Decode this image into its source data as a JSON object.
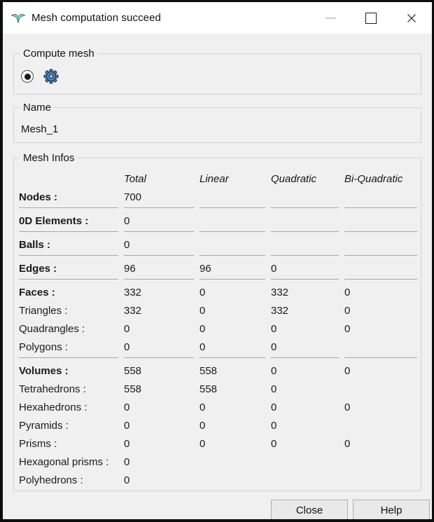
{
  "window": {
    "title": "Mesh computation succeed"
  },
  "titlebar": {
    "minimize_icon": "minimize-dash",
    "maximize_icon": "maximize-square",
    "close_icon": "close-x",
    "app_icon": "mesh-module-bird"
  },
  "groups": {
    "compute": {
      "title": "Compute mesh"
    },
    "name": {
      "title": "Name",
      "value": "Mesh_1"
    },
    "infos": {
      "title": "Mesh Infos"
    }
  },
  "table": {
    "columns": [
      "Total",
      "Linear",
      "Quadratic",
      "Bi-Quadratic"
    ],
    "rows": [
      {
        "label": "Nodes :",
        "bold": true,
        "separator": true,
        "values": [
          "700",
          "",
          "",
          ""
        ]
      },
      {
        "label": "0D Elements :",
        "bold": true,
        "separator": true,
        "values": [
          "0",
          "",
          "",
          ""
        ]
      },
      {
        "label": "Balls :",
        "bold": true,
        "separator": true,
        "values": [
          "0",
          "",
          "",
          ""
        ]
      },
      {
        "label": "Edges :",
        "bold": true,
        "separator": true,
        "values": [
          "96",
          "96",
          "0",
          ""
        ]
      },
      {
        "label": "Faces :",
        "bold": true,
        "separator": false,
        "values": [
          "332",
          "0",
          "332",
          "0"
        ]
      },
      {
        "label": "Triangles :",
        "bold": false,
        "separator": false,
        "values": [
          "332",
          "0",
          "332",
          "0"
        ]
      },
      {
        "label": "Quadrangles :",
        "bold": false,
        "separator": false,
        "values": [
          "0",
          "0",
          "0",
          "0"
        ]
      },
      {
        "label": "Polygons :",
        "bold": false,
        "separator": true,
        "values": [
          "0",
          "0",
          "0",
          ""
        ]
      },
      {
        "label": "Volumes :",
        "bold": true,
        "separator": false,
        "values": [
          "558",
          "558",
          "0",
          "0"
        ]
      },
      {
        "label": "Tetrahedrons :",
        "bold": false,
        "separator": false,
        "values": [
          "558",
          "558",
          "0",
          ""
        ]
      },
      {
        "label": "Hexahedrons :",
        "bold": false,
        "separator": false,
        "values": [
          "0",
          "0",
          "0",
          "0"
        ]
      },
      {
        "label": "Pyramids :",
        "bold": false,
        "separator": false,
        "values": [
          "0",
          "0",
          "0",
          ""
        ]
      },
      {
        "label": "Prisms :",
        "bold": false,
        "separator": false,
        "values": [
          "0",
          "0",
          "0",
          "0"
        ]
      },
      {
        "label": "Hexagonal prisms :",
        "bold": false,
        "separator": false,
        "values": [
          "0",
          "",
          "",
          ""
        ]
      },
      {
        "label": "Polyhedrons :",
        "bold": false,
        "separator": false,
        "values": [
          "0",
          "",
          "",
          ""
        ]
      }
    ]
  },
  "buttons": {
    "close": "Close",
    "help": "Help"
  },
  "colors": {
    "dialog_bg": "#f0f0f0",
    "titlebar_bg": "#ffffff",
    "window_frame": "#0d0d0d",
    "group_border": "#d4d4d4",
    "separator_line": "#a8a8a8",
    "app_icon_teal": "#53b7ae",
    "gear_blue": "#5380ad",
    "button_bg": "#e9e9e9"
  }
}
